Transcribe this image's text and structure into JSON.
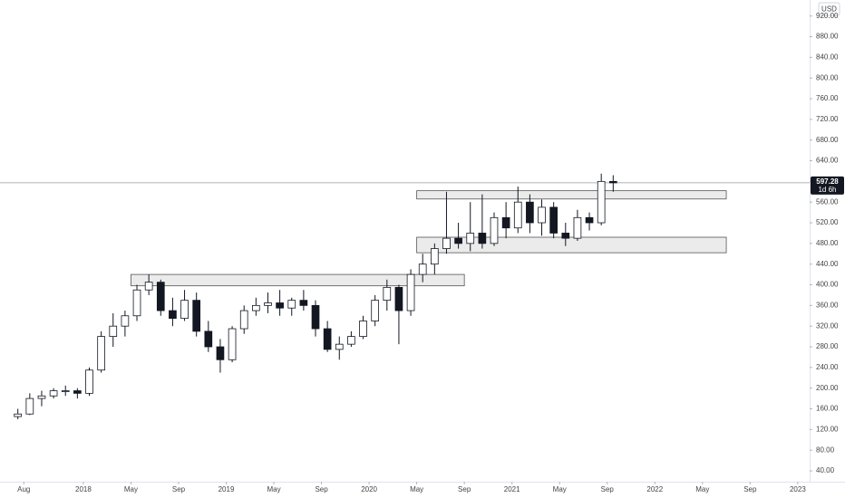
{
  "chart_data": {
    "type": "candlestick",
    "currency": "USD",
    "countdown": "1d 6h",
    "grid": false,
    "up_color": "#ffffff",
    "down_color": "#131722",
    "outline_color": "#131722",
    "price_line_color": "#9598a1",
    "zone_color": "#ebebeb",
    "x": [
      "2017-07",
      "2017-08",
      "2017-09",
      "2017-10",
      "2017-11",
      "2017-12",
      "2018-01",
      "2018-02",
      "2018-03",
      "2018-04",
      "2018-05",
      "2018-06",
      "2018-07",
      "2018-08",
      "2018-09",
      "2018-10",
      "2018-11",
      "2018-12",
      "2019-01",
      "2019-02",
      "2019-03",
      "2019-04",
      "2019-05",
      "2019-06",
      "2019-07",
      "2019-08",
      "2019-09",
      "2019-10",
      "2019-11",
      "2019-12",
      "2020-01",
      "2020-02",
      "2020-03",
      "2020-04",
      "2020-05",
      "2020-06",
      "2020-07",
      "2020-08",
      "2020-09",
      "2020-10",
      "2020-11",
      "2020-12",
      "2021-01",
      "2021-02",
      "2021-03",
      "2021-04",
      "2021-05",
      "2021-06",
      "2021-07",
      "2021-08",
      "2021-09"
    ],
    "open": [
      145,
      150,
      180,
      185,
      195,
      195,
      190,
      235,
      300,
      320,
      340,
      390,
      405,
      350,
      335,
      370,
      310,
      280,
      255,
      315,
      350,
      360,
      365,
      355,
      370,
      360,
      315,
      275,
      285,
      300,
      330,
      370,
      395,
      350,
      420,
      440,
      470,
      490,
      480,
      500,
      480,
      530,
      510,
      560,
      520,
      550,
      500,
      490,
      530,
      520,
      600
    ],
    "high": [
      160,
      190,
      195,
      200,
      205,
      200,
      240,
      310,
      345,
      350,
      400,
      420,
      410,
      375,
      390,
      385,
      330,
      295,
      320,
      360,
      375,
      385,
      390,
      375,
      390,
      370,
      330,
      300,
      310,
      340,
      380,
      410,
      400,
      430,
      460,
      480,
      580,
      520,
      560,
      575,
      540,
      560,
      590,
      575,
      565,
      560,
      520,
      545,
      540,
      615,
      612
    ],
    "low": [
      140,
      148,
      165,
      180,
      185,
      180,
      185,
      230,
      280,
      300,
      330,
      380,
      340,
      320,
      330,
      300,
      270,
      230,
      250,
      305,
      340,
      345,
      340,
      340,
      350,
      300,
      270,
      255,
      280,
      295,
      320,
      350,
      285,
      340,
      405,
      420,
      460,
      470,
      465,
      470,
      475,
      490,
      500,
      500,
      495,
      490,
      475,
      485,
      505,
      515,
      580
    ],
    "close": [
      150,
      180,
      185,
      195,
      195,
      190,
      235,
      300,
      320,
      340,
      390,
      405,
      350,
      335,
      370,
      310,
      280,
      255,
      315,
      350,
      360,
      365,
      355,
      370,
      360,
      315,
      275,
      285,
      300,
      330,
      370,
      395,
      350,
      420,
      440,
      470,
      490,
      480,
      500,
      480,
      530,
      510,
      560,
      520,
      550,
      500,
      490,
      530,
      520,
      600,
      597.28
    ],
    "zones": [
      {
        "x": [
          "2018-05",
          "2020-09"
        ],
        "y": [
          398,
          420
        ]
      },
      {
        "x": [
          "2020-05",
          "2022-07"
        ],
        "y": [
          462,
          492
        ]
      },
      {
        "x": [
          "2020-05",
          "2022-07"
        ],
        "y": [
          566,
          582
        ]
      }
    ],
    "xlim": [
      "2017-06",
      "2023-02"
    ],
    "xticks": [
      {
        "value": "2017-08",
        "label": "Aug"
      },
      {
        "value": "2018-01",
        "label": "2018"
      },
      {
        "value": "2018-05",
        "label": "May"
      },
      {
        "value": "2018-09",
        "label": "Sep"
      },
      {
        "value": "2019-01",
        "label": "2019"
      },
      {
        "value": "2019-05",
        "label": "May"
      },
      {
        "value": "2019-09",
        "label": "Sep"
      },
      {
        "value": "2020-01",
        "label": "2020"
      },
      {
        "value": "2020-05",
        "label": "May"
      },
      {
        "value": "2020-09",
        "label": "Sep"
      },
      {
        "value": "2021-01",
        "label": "2021"
      },
      {
        "value": "2021-05",
        "label": "May"
      },
      {
        "value": "2021-09",
        "label": "Sep"
      },
      {
        "value": "2022-01",
        "label": "2022"
      },
      {
        "value": "2022-05",
        "label": "May"
      },
      {
        "value": "2022-09",
        "label": "Sep"
      },
      {
        "value": "2023-01",
        "label": "2023"
      }
    ],
    "ylim": [
      19,
      951
    ],
    "yticks": [
      {
        "value": 40,
        "label": "40.00"
      },
      {
        "value": 80,
        "label": "80.00"
      },
      {
        "value": 120,
        "label": "120.00"
      },
      {
        "value": 160,
        "label": "160.00"
      },
      {
        "value": 200,
        "label": "200.00"
      },
      {
        "value": 240,
        "label": "240.00"
      },
      {
        "value": 280,
        "label": "280.00"
      },
      {
        "value": 320,
        "label": "320.00"
      },
      {
        "value": 360,
        "label": "360.00"
      },
      {
        "value": 400,
        "label": "400.00"
      },
      {
        "value": 440,
        "label": "440.00"
      },
      {
        "value": 480,
        "label": "480.00"
      },
      {
        "value": 520,
        "label": "520.00"
      },
      {
        "value": 560,
        "label": "560.00"
      },
      {
        "value": 600,
        "label": "600.00"
      },
      {
        "value": 640,
        "label": "640.00"
      },
      {
        "value": 680,
        "label": "680.00"
      },
      {
        "value": 720,
        "label": "720.00"
      },
      {
        "value": 760,
        "label": "760.00"
      },
      {
        "value": 800,
        "label": "800.00"
      },
      {
        "value": 840,
        "label": "840.00"
      },
      {
        "value": 880,
        "label": "880.00"
      },
      {
        "value": 920,
        "label": "920.00"
      }
    ]
  }
}
